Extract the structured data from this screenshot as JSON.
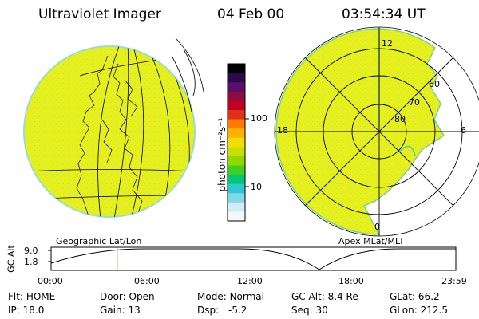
{
  "header": {
    "instrument": "Ultraviolet Imager",
    "date": "04 Feb 00",
    "time": "03:54:34 UT"
  },
  "colorbar": {
    "label": "photon cm⁻²s⁻¹",
    "ticks": [
      "100",
      "10"
    ],
    "colors": [
      "#000000",
      "#2a0a4a",
      "#5a0f6a",
      "#8a0f40",
      "#c00020",
      "#e0301a",
      "#ff7a00",
      "#ffb000",
      "#f0e000",
      "#c8e000",
      "#90d800",
      "#40d020",
      "#00c878",
      "#30c8d0",
      "#80d8e8",
      "#d0ecf4",
      "#f4f8fb"
    ]
  },
  "geo_map": {
    "label": "Geographic Lat/Lon",
    "fill": "#e6f01e"
  },
  "polar_map": {
    "label": "Apex MLat/MLT",
    "mlt_labels": {
      "top": "12",
      "left": "18",
      "right": "6",
      "bottom": "0"
    },
    "lat_labels": [
      "60",
      "70",
      "80"
    ],
    "fill": "#e6f01e"
  },
  "altitude_plot": {
    "axis_label": "GC Alt",
    "y_ticks": [
      "9.0",
      "1.8"
    ],
    "x_ticks": [
      "00:00",
      "06:00",
      "12:00",
      "18:00",
      "23:59"
    ],
    "current_time_hours": 3.91,
    "marker_color": "#cc0000"
  },
  "status": {
    "row1": [
      {
        "label": "Flt:",
        "value": "HOME"
      },
      {
        "label": "Door:",
        "value": "Open"
      },
      {
        "label": "Mode:",
        "value": "Normal"
      },
      {
        "label": "GC Alt:",
        "value": "8.4 Re"
      },
      {
        "label": "GLat:",
        "value": "66.2"
      }
    ],
    "row2": [
      {
        "label": "IP:",
        "value": "18.0"
      },
      {
        "label": "Gain:",
        "value": "13"
      },
      {
        "label": "Dsp:",
        "value": "-5.2"
      },
      {
        "label": "Seq:",
        "value": "30"
      },
      {
        "label": "GLon:",
        "value": "212.5"
      }
    ]
  }
}
